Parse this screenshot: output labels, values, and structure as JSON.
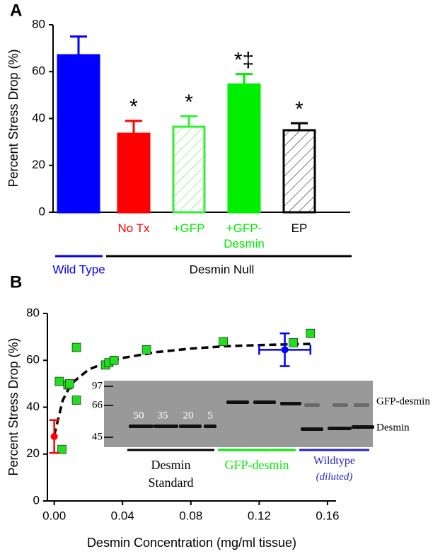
{
  "chart_data": [
    {
      "type": "bar",
      "panel": "A",
      "ylabel": "Percent Stress Drop (%)",
      "categories": [
        null,
        "No Tx",
        "+GFP",
        "+GFP-Desmin",
        "EP"
      ],
      "values": [
        67,
        33.5,
        36.5,
        54.5,
        35
      ],
      "errors": [
        8,
        5.5,
        4.5,
        4.5,
        3
      ],
      "annotations": [
        null,
        "*",
        "*",
        "*‡",
        "*"
      ],
      "colors": [
        "#0000ff",
        "#ff0000",
        "#33ee33",
        "#00ee00",
        "#000000"
      ],
      "fills": [
        "solid",
        "solid",
        "hatch",
        "solid",
        "hatch"
      ],
      "label_colors": [
        "#0000ff",
        "#ff0000",
        "#00ee00",
        "#00ee00",
        "#000000"
      ],
      "groups": [
        {
          "label": "Wild Type",
          "color": "#0000ff"
        },
        {
          "label": "Desmin Null",
          "color": "#000000"
        }
      ],
      "ylim": [
        0,
        80
      ],
      "yticks": [
        0,
        20,
        40,
        60,
        80
      ]
    },
    {
      "type": "scatter",
      "panel": "B",
      "ylabel": "Percent Stress Drop (%)",
      "xlabel": "Desmin Concentration (mg/ml tissue)",
      "series": [
        {
          "color": "#22dd22",
          "x": [
            0.0045,
            0.003,
            0.008,
            0.009,
            0.013,
            0.013,
            0.03,
            0.032,
            0.035,
            0.054,
            0.099,
            0.14,
            0.15
          ],
          "values": [
            22,
            51,
            49.5,
            50,
            43,
            65.5,
            58,
            59,
            60,
            64.5,
            68,
            67.5,
            71.5
          ]
        },
        {
          "color": "#ff0000",
          "x": [
            0
          ],
          "values": [
            27.5
          ],
          "errors": [
            7
          ]
        },
        {
          "color": "#0000ff",
          "x": [
            0.135
          ],
          "values": [
            64.5
          ],
          "errors": [
            7
          ],
          "x_errors": [
            0.015
          ]
        }
      ],
      "fit": {
        "x": [
          0,
          0.005,
          0.01,
          0.02,
          0.03,
          0.04,
          0.06,
          0.08,
          0.1,
          0.12,
          0.15
        ],
        "values": [
          28,
          43,
          50,
          56,
          59,
          61,
          63.5,
          65,
          66,
          66.5,
          67
        ],
        "dashed": true
      },
      "xlim": [
        -0.004,
        0.165
      ],
      "xticks": [
        {
          "value": 0,
          "label": "0.00"
        },
        0.04,
        0.08,
        0.12,
        0.16
      ],
      "ylim": [
        0,
        80
      ],
      "yticks": [
        0,
        20,
        40,
        60,
        80
      ],
      "inset": {
        "markers": [
          "97",
          "66",
          "45"
        ],
        "lanes": [
          "50",
          "35",
          "20",
          "5"
        ],
        "band_labels": [
          "GFP-desmin",
          "Desmin"
        ],
        "groups": [
          {
            "label": "Desmin Standard",
            "color": "#000000"
          },
          {
            "label": "GFP-desmin",
            "color": "#00ee00"
          },
          {
            "label": "Wildtype",
            "note": "(diluted)",
            "color": "#2222cc"
          }
        ]
      }
    }
  ]
}
